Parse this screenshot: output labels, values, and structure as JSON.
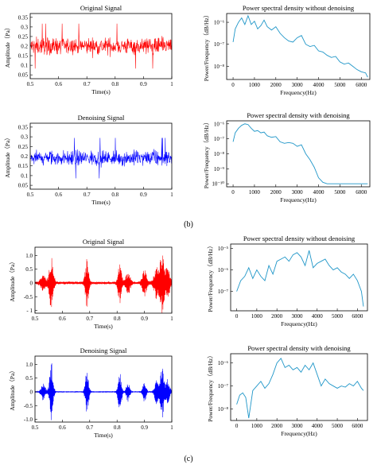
{
  "figure": {
    "panel_labels": [
      "(b)",
      "(c)"
    ],
    "colors": {
      "red": "#ff0000",
      "blue": "#0000ff",
      "cyan": "#1f96c8",
      "frame": "#000000"
    }
  },
  "chart_data": [
    {
      "type": "line",
      "color": "#ff0000",
      "title": "Original Signal",
      "xlabel": "Time(s)",
      "ylabel": "Amplitude（Pa）",
      "xlim": [
        0.5,
        1.0
      ],
      "ylim": [
        0.03,
        0.37
      ],
      "xticks": [
        0.5,
        0.6,
        0.7,
        0.8,
        0.9,
        1.0
      ],
      "xtick_labels": [
        "0.5",
        "0.6",
        "0.7",
        "0.8",
        "0.9",
        "1"
      ],
      "yticks": [
        0.05,
        0.1,
        0.15,
        0.2,
        0.25,
        0.3,
        0.35
      ],
      "ytick_labels": [
        "0.05",
        "0.1",
        "0.15",
        "0.2",
        "0.25",
        "0.3",
        "0.35"
      ],
      "signal": {
        "kind": "noise",
        "center": 0.2,
        "amplitude": 0.045,
        "peak_max": 0.35,
        "peak_min": 0.06
      }
    },
    {
      "type": "line",
      "color": "#1f96c8",
      "title": "Power spectral density without denoising",
      "xlabel": "Frequency(Hz)",
      "ylabel": "Power/Frequency（dB/Hz）",
      "log_y": true,
      "xlim": [
        -300,
        6400
      ],
      "ylim_exp": [
        -8.6,
        -5.6
      ],
      "xticks": [
        0,
        1000,
        2000,
        3000,
        4000,
        5000,
        6000
      ],
      "xtick_labels": [
        "0",
        "1000",
        "2000",
        "3000",
        "4000",
        "5000",
        "6000"
      ],
      "yticks_exp": [
        -8,
        -7,
        -6
      ],
      "ytick_labels": [
        "10⁻⁸",
        "10⁻⁷",
        "10⁻⁶"
      ],
      "x": [
        0,
        100,
        250,
        400,
        550,
        700,
        850,
        1000,
        1150,
        1300,
        1450,
        1600,
        1800,
        2000,
        2200,
        2400,
        2600,
        2800,
        3000,
        3200,
        3400,
        3600,
        3800,
        4000,
        4200,
        4400,
        4600,
        4800,
        5000,
        5200,
        5400,
        5600,
        5800,
        6000,
        6200,
        6300
      ],
      "y_exp": [
        -6.9,
        -6.3,
        -6.0,
        -5.8,
        -6.1,
        -5.7,
        -6.1,
        -5.95,
        -6.3,
        -6.15,
        -5.9,
        -6.2,
        -6.35,
        -6.2,
        -6.5,
        -6.7,
        -6.85,
        -6.9,
        -6.7,
        -6.6,
        -7.0,
        -7.1,
        -7.05,
        -7.3,
        -7.35,
        -7.5,
        -7.6,
        -7.55,
        -7.8,
        -7.9,
        -7.85,
        -8.0,
        -8.15,
        -8.25,
        -8.3,
        -8.5
      ]
    },
    {
      "type": "line",
      "color": "#0000ff",
      "title": "Denoising Signal",
      "xlabel": "Time(s)",
      "ylabel": "Amplitude（Pa）",
      "xlim": [
        0.5,
        1.0
      ],
      "ylim": [
        0.03,
        0.37
      ],
      "xticks": [
        0.5,
        0.6,
        0.7,
        0.8,
        0.9,
        1.0
      ],
      "xtick_labels": [
        "0.5",
        "0.6",
        "0.7",
        "0.8",
        "0.9",
        "1"
      ],
      "yticks": [
        0.05,
        0.1,
        0.15,
        0.2,
        0.25,
        0.3,
        0.35
      ],
      "ytick_labels": [
        "0.05",
        "0.1",
        "0.15",
        "0.2",
        "0.25",
        "0.3",
        "0.35"
      ],
      "signal": {
        "kind": "noise",
        "center": 0.19,
        "amplitude": 0.04,
        "peak_max": 0.33,
        "peak_min": 0.06
      }
    },
    {
      "type": "line",
      "color": "#1f96c8",
      "title": "Power spectral density with denoising",
      "xlabel": "Frequency(Hz)",
      "ylabel": "Power/Frequency（dB/Hz）",
      "log_y": true,
      "xlim": [
        -300,
        6400
      ],
      "ylim_exp": [
        -10.2,
        -5.8
      ],
      "xticks": [
        0,
        1000,
        2000,
        3000,
        4000,
        5000,
        6000
      ],
      "xtick_labels": [
        "0",
        "1000",
        "2000",
        "3000",
        "4000",
        "5000",
        "6000"
      ],
      "yticks_exp": [
        -10,
        -9,
        -8,
        -7,
        -6
      ],
      "ytick_labels": [
        "10⁻¹⁰",
        "10⁻⁹",
        "10⁻⁸",
        "10⁻⁷",
        "10⁻⁶"
      ],
      "x": [
        0,
        100,
        250,
        400,
        550,
        700,
        850,
        1000,
        1150,
        1300,
        1450,
        1600,
        1800,
        2000,
        2200,
        2400,
        2600,
        2800,
        3000,
        3200,
        3400,
        3600,
        3800,
        4000,
        4200,
        4400,
        4600,
        4800,
        5000,
        5500,
        6000,
        6300
      ],
      "y_exp": [
        -7.2,
        -6.6,
        -6.3,
        -6.1,
        -6.0,
        -6.05,
        -6.3,
        -6.5,
        -6.45,
        -6.6,
        -6.55,
        -6.8,
        -6.9,
        -6.85,
        -7.2,
        -7.3,
        -7.25,
        -7.3,
        -7.5,
        -7.4,
        -8.0,
        -8.4,
        -8.9,
        -9.6,
        -9.9,
        -10.0,
        -10.0,
        -10.0,
        -10.0,
        -10.0,
        -10.0,
        -10.0
      ]
    },
    {
      "type": "line",
      "color": "#ff0000",
      "title": "Original Signal",
      "xlabel": "Time(s)",
      "ylabel": "Amplitude（Pa）",
      "xlim": [
        0.5,
        1.0
      ],
      "ylim": [
        -1.1,
        1.3
      ],
      "xticks": [
        0.5,
        0.6,
        0.7,
        0.8,
        0.9,
        1.0
      ],
      "xtick_labels": [
        "0.5",
        "0.6",
        "0.7",
        "0.8",
        "0.9",
        "1"
      ],
      "yticks": [
        -1,
        -0.5,
        0,
        0.5,
        1
      ],
      "ytick_labels": [
        "- 1",
        "-0.5",
        "0",
        "0.5",
        "1.0"
      ],
      "signal": {
        "kind": "bursts",
        "baseline_amp": 0.05,
        "bursts": [
          {
            "t": 0.53,
            "amp": 0.25,
            "width": 0.012
          },
          {
            "t": 0.56,
            "amp": 1.0,
            "width": 0.009
          },
          {
            "t": 0.69,
            "amp": 0.85,
            "width": 0.008
          },
          {
            "t": 0.81,
            "amp": 0.7,
            "width": 0.008
          },
          {
            "t": 0.84,
            "amp": 0.4,
            "width": 0.01
          },
          {
            "t": 0.9,
            "amp": 0.45,
            "width": 0.01
          },
          {
            "t": 0.945,
            "amp": 0.55,
            "width": 0.012
          },
          {
            "t": 0.965,
            "amp": 1.1,
            "width": 0.009
          },
          {
            "t": 0.985,
            "amp": 0.55,
            "width": 0.01
          }
        ]
      }
    },
    {
      "type": "line",
      "color": "#1f96c8",
      "title": "Power spectral density without denoising",
      "xlabel": "Frequency(Hz)",
      "ylabel": "Power/Frequency（dB/Hz）",
      "log_y": true,
      "xlim": [
        -300,
        6500
      ],
      "ylim_exp": [
        -7.9,
        -4.8
      ],
      "xticks": [
        0,
        1000,
        2000,
        3000,
        4000,
        5000,
        6000
      ],
      "xtick_labels": [
        "0",
        "1000",
        "2000",
        "3000",
        "4000",
        "5000",
        "6000"
      ],
      "yticks_exp": [
        -7,
        -6,
        -5
      ],
      "ytick_labels": [
        "10⁻⁷",
        "10⁻⁶",
        "10⁻⁵"
      ],
      "x": [
        0,
        200,
        400,
        600,
        800,
        1000,
        1200,
        1400,
        1600,
        1800,
        2000,
        2200,
        2400,
        2600,
        2800,
        3000,
        3200,
        3400,
        3600,
        3800,
        4000,
        4200,
        4400,
        4600,
        4800,
        5000,
        5200,
        5400,
        5600,
        5800,
        6000,
        6200,
        6300
      ],
      "y_exp": [
        -7.0,
        -6.5,
        -6.3,
        -5.9,
        -6.4,
        -6.0,
        -6.3,
        -6.5,
        -5.8,
        -6.2,
        -5.6,
        -5.5,
        -5.4,
        -5.6,
        -5.3,
        -5.2,
        -5.4,
        -5.8,
        -5.1,
        -5.9,
        -5.7,
        -5.6,
        -5.5,
        -5.8,
        -6.0,
        -5.9,
        -6.1,
        -6.2,
        -6.4,
        -6.2,
        -6.5,
        -7.0,
        -7.7
      ]
    },
    {
      "type": "line",
      "color": "#0000ff",
      "title": "Denoising Signal",
      "xlabel": "Time(s)",
      "ylabel": "Amplitude（Pa）",
      "xlim": [
        0.5,
        1.0
      ],
      "ylim": [
        -1.1,
        1.3
      ],
      "xticks": [
        0.5,
        0.6,
        0.7,
        0.8,
        0.9,
        1.0
      ],
      "xtick_labels": [
        "0.5",
        "0.6",
        "0.7",
        "0.8",
        "0.9",
        "1"
      ],
      "yticks": [
        -1,
        -0.5,
        0,
        0.5,
        1
      ],
      "ytick_labels": [
        "-1.0",
        "-0.5",
        "0",
        "0.5",
        "1.0"
      ],
      "signal": {
        "kind": "bursts",
        "baseline_amp": 0.012,
        "bursts": [
          {
            "t": 0.53,
            "amp": 0.3,
            "width": 0.01
          },
          {
            "t": 0.56,
            "amp": 1.1,
            "width": 0.008
          },
          {
            "t": 0.69,
            "amp": 0.8,
            "width": 0.008
          },
          {
            "t": 0.81,
            "amp": 0.7,
            "width": 0.008
          },
          {
            "t": 0.84,
            "amp": 0.35,
            "width": 0.008
          },
          {
            "t": 0.9,
            "amp": 0.35,
            "width": 0.008
          },
          {
            "t": 0.945,
            "amp": 0.45,
            "width": 0.01
          },
          {
            "t": 0.965,
            "amp": 1.0,
            "width": 0.008
          },
          {
            "t": 0.985,
            "amp": 0.45,
            "width": 0.009
          }
        ]
      }
    },
    {
      "type": "line",
      "color": "#1f96c8",
      "title": "Power spectral density with denoising",
      "xlabel": "Frequency(Hz)",
      "ylabel": "Power/Frequency（dB/Hz）",
      "log_y": true,
      "xlim": [
        -300,
        6500
      ],
      "ylim_exp": [
        -8.5,
        -5.6
      ],
      "xticks": [
        0,
        1000,
        2000,
        3000,
        4000,
        5000,
        6000
      ],
      "xtick_labels": [
        "0",
        "1000",
        "2000",
        "3000",
        "4000",
        "5000",
        "6000"
      ],
      "yticks_exp": [
        -8,
        -7,
        -6
      ],
      "ytick_labels": [
        "10⁻⁸",
        "10⁻⁷",
        "10⁻⁶"
      ],
      "x": [
        0,
        150,
        300,
        450,
        600,
        800,
        1000,
        1200,
        1400,
        1600,
        1800,
        2000,
        2200,
        2400,
        2600,
        2800,
        3000,
        3200,
        3400,
        3600,
        3800,
        4000,
        4200,
        4400,
        4600,
        4800,
        5000,
        5200,
        5400,
        5600,
        5800,
        6000,
        6200,
        6300
      ],
      "y_exp": [
        -7.8,
        -7.4,
        -7.3,
        -7.5,
        -8.4,
        -7.2,
        -7.0,
        -6.8,
        -7.1,
        -6.9,
        -6.5,
        -6.0,
        -5.8,
        -6.2,
        -6.1,
        -6.3,
        -6.2,
        -6.4,
        -6.1,
        -6.3,
        -6.0,
        -6.5,
        -7.0,
        -6.7,
        -6.9,
        -7.0,
        -7.1,
        -7.0,
        -7.05,
        -6.9,
        -7.0,
        -6.8,
        -7.1,
        -7.2
      ]
    }
  ]
}
